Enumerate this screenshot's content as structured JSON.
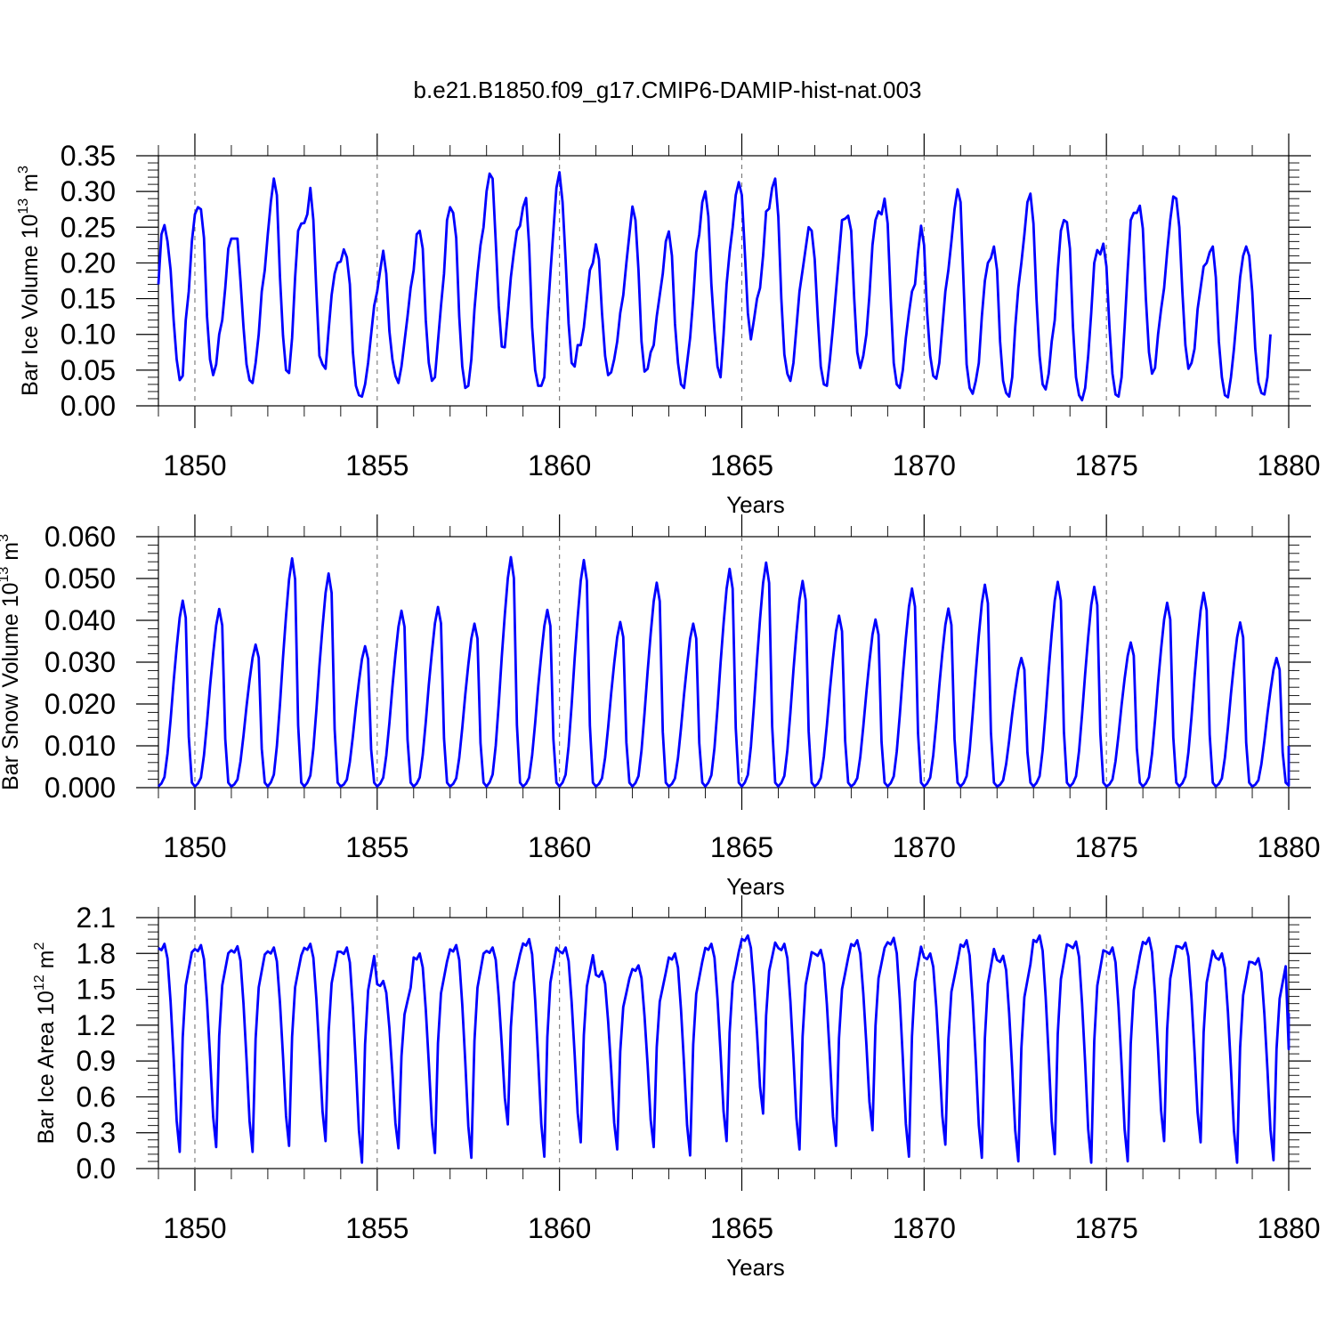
{
  "figure": {
    "title": "b.e21.B1850.f09_g17.CMIP6-DAMIP-hist-nat.003"
  },
  "chart_data": [
    {
      "type": "line",
      "xlabel": "Years",
      "ylabel": "Bar Ice Volume 10",
      "ylabel_exp": "13",
      "ylabel_unit": " m",
      "ylabel_unit_exp": "3",
      "xlim": [
        1849.0,
        1880.0
      ],
      "ylim": [
        0.0,
        0.35
      ],
      "yticks": [
        0.0,
        0.05,
        0.1,
        0.15,
        0.2,
        0.25,
        0.3,
        0.35
      ],
      "ytick_labels": [
        "0.00",
        "0.05",
        "0.10",
        "0.15",
        "0.20",
        "0.25",
        "0.30",
        "0.35"
      ],
      "xticks": [
        1850,
        1855,
        1860,
        1865,
        1870,
        1875,
        1880
      ],
      "xtick_labels": [
        "1850",
        "1855",
        "1860",
        "1865",
        "1870",
        "1875",
        "1880"
      ],
      "reference_lines_x": [
        1850,
        1855,
        1860,
        1865,
        1870,
        1875
      ],
      "color": "#0000ff",
      "start_year": 1849.0,
      "monthly_values": [
        0.17,
        0.24,
        0.253,
        0.23,
        0.19,
        0.12,
        0.065,
        0.036,
        0.042,
        0.12,
        0.16,
        0.23,
        0.268,
        0.278,
        0.275,
        0.235,
        0.125,
        0.065,
        0.043,
        0.058,
        0.1,
        0.12,
        0.165,
        0.22,
        0.234,
        0.234,
        0.234,
        0.175,
        0.11,
        0.058,
        0.036,
        0.032,
        0.06,
        0.1,
        0.16,
        0.19,
        0.24,
        0.285,
        0.318,
        0.295,
        0.18,
        0.098,
        0.05,
        0.046,
        0.095,
        0.18,
        0.245,
        0.255,
        0.256,
        0.268,
        0.305,
        0.26,
        0.16,
        0.07,
        0.058,
        0.052,
        0.105,
        0.155,
        0.185,
        0.2,
        0.202,
        0.219,
        0.208,
        0.17,
        0.075,
        0.028,
        0.015,
        0.013,
        0.03,
        0.06,
        0.1,
        0.14,
        0.16,
        0.19,
        0.217,
        0.185,
        0.105,
        0.065,
        0.042,
        0.032,
        0.055,
        0.09,
        0.125,
        0.165,
        0.19,
        0.24,
        0.245,
        0.22,
        0.12,
        0.06,
        0.035,
        0.04,
        0.09,
        0.14,
        0.185,
        0.26,
        0.278,
        0.27,
        0.235,
        0.125,
        0.055,
        0.025,
        0.028,
        0.065,
        0.135,
        0.185,
        0.225,
        0.25,
        0.3,
        0.325,
        0.318,
        0.23,
        0.14,
        0.083,
        0.082,
        0.13,
        0.18,
        0.215,
        0.245,
        0.252,
        0.278,
        0.291,
        0.225,
        0.11,
        0.05,
        0.028,
        0.028,
        0.04,
        0.12,
        0.185,
        0.245,
        0.305,
        0.327,
        0.285,
        0.205,
        0.115,
        0.06,
        0.055,
        0.085,
        0.085,
        0.11,
        0.15,
        0.19,
        0.2,
        0.226,
        0.205,
        0.13,
        0.07,
        0.043,
        0.047,
        0.065,
        0.09,
        0.13,
        0.155,
        0.2,
        0.24,
        0.279,
        0.26,
        0.19,
        0.09,
        0.048,
        0.052,
        0.075,
        0.085,
        0.125,
        0.155,
        0.185,
        0.23,
        0.244,
        0.21,
        0.115,
        0.06,
        0.03,
        0.025,
        0.06,
        0.095,
        0.15,
        0.215,
        0.24,
        0.285,
        0.3,
        0.265,
        0.17,
        0.105,
        0.055,
        0.04,
        0.1,
        0.17,
        0.215,
        0.25,
        0.295,
        0.313,
        0.295,
        0.215,
        0.13,
        0.093,
        0.12,
        0.15,
        0.165,
        0.21,
        0.272,
        0.276,
        0.305,
        0.318,
        0.265,
        0.15,
        0.072,
        0.045,
        0.035,
        0.06,
        0.11,
        0.16,
        0.19,
        0.22,
        0.25,
        0.245,
        0.205,
        0.125,
        0.055,
        0.03,
        0.028,
        0.065,
        0.11,
        0.16,
        0.21,
        0.26,
        0.262,
        0.266,
        0.245,
        0.15,
        0.075,
        0.053,
        0.07,
        0.1,
        0.155,
        0.225,
        0.26,
        0.272,
        0.268,
        0.29,
        0.255,
        0.15,
        0.06,
        0.03,
        0.025,
        0.05,
        0.095,
        0.13,
        0.16,
        0.17,
        0.215,
        0.252,
        0.225,
        0.13,
        0.07,
        0.042,
        0.038,
        0.06,
        0.11,
        0.16,
        0.19,
        0.23,
        0.275,
        0.303,
        0.285,
        0.17,
        0.058,
        0.025,
        0.017,
        0.035,
        0.06,
        0.125,
        0.175,
        0.2,
        0.207,
        0.223,
        0.19,
        0.09,
        0.035,
        0.018,
        0.013,
        0.04,
        0.11,
        0.165,
        0.2,
        0.24,
        0.285,
        0.297,
        0.255,
        0.15,
        0.07,
        0.03,
        0.023,
        0.045,
        0.09,
        0.12,
        0.19,
        0.245,
        0.26,
        0.257,
        0.22,
        0.11,
        0.04,
        0.015,
        0.008,
        0.025,
        0.07,
        0.13,
        0.2,
        0.218,
        0.212,
        0.227,
        0.195,
        0.11,
        0.045,
        0.016,
        0.013,
        0.04,
        0.11,
        0.19,
        0.26,
        0.27,
        0.27,
        0.28,
        0.248,
        0.15,
        0.075,
        0.045,
        0.053,
        0.1,
        0.135,
        0.165,
        0.215,
        0.26,
        0.293,
        0.29,
        0.25,
        0.16,
        0.085,
        0.052,
        0.06,
        0.08,
        0.135,
        0.165,
        0.195,
        0.2,
        0.215,
        0.223,
        0.18,
        0.09,
        0.04,
        0.015,
        0.012,
        0.04,
        0.08,
        0.13,
        0.18,
        0.21,
        0.223,
        0.21,
        0.16,
        0.08,
        0.033,
        0.018,
        0.016,
        0.04,
        0.1
      ]
    },
    {
      "type": "line",
      "xlabel": "Years",
      "ylabel": "Bar Snow Volume 10",
      "ylabel_exp": "13",
      "ylabel_unit": " m",
      "ylabel_unit_exp": "3",
      "xlim": [
        1849.0,
        1880.0
      ],
      "ylim": [
        0.0,
        0.06
      ],
      "yticks": [
        0.0,
        0.01,
        0.02,
        0.03,
        0.04,
        0.05,
        0.06
      ],
      "ytick_labels": [
        "0.000",
        "0.010",
        "0.020",
        "0.030",
        "0.040",
        "0.050",
        "0.060"
      ],
      "xticks": [
        1850,
        1855,
        1860,
        1865,
        1870,
        1875,
        1880
      ],
      "xtick_labels": [
        "1850",
        "1855",
        "1860",
        "1865",
        "1870",
        "1875",
        "1880"
      ],
      "reference_lines_x": [
        1850,
        1855,
        1860,
        1865,
        1870,
        1875
      ],
      "color": "#0000ff",
      "start_year": 1849.0,
      "peaks": [
        {
          "t": 1849.35,
          "v": 0.0447
        },
        {
          "t": 1850.35,
          "v": 0.0427
        },
        {
          "t": 1851.35,
          "v": 0.0342
        },
        {
          "t": 1852.35,
          "v": 0.0548
        },
        {
          "t": 1853.35,
          "v": 0.0512
        },
        {
          "t": 1854.35,
          "v": 0.0338
        },
        {
          "t": 1855.35,
          "v": 0.0423
        },
        {
          "t": 1856.35,
          "v": 0.0432
        },
        {
          "t": 1857.35,
          "v": 0.0392
        },
        {
          "t": 1858.35,
          "v": 0.0551
        },
        {
          "t": 1859.35,
          "v": 0.0425
        },
        {
          "t": 1860.35,
          "v": 0.0544
        },
        {
          "t": 1861.35,
          "v": 0.0396
        },
        {
          "t": 1862.35,
          "v": 0.049
        },
        {
          "t": 1863.35,
          "v": 0.0392
        },
        {
          "t": 1864.35,
          "v": 0.0523
        },
        {
          "t": 1865.35,
          "v": 0.0538
        },
        {
          "t": 1866.35,
          "v": 0.0494
        },
        {
          "t": 1867.35,
          "v": 0.0411
        },
        {
          "t": 1868.35,
          "v": 0.0402
        },
        {
          "t": 1869.35,
          "v": 0.0476
        },
        {
          "t": 1870.35,
          "v": 0.0428
        },
        {
          "t": 1871.35,
          "v": 0.0485
        },
        {
          "t": 1872.35,
          "v": 0.031
        },
        {
          "t": 1873.35,
          "v": 0.0492
        },
        {
          "t": 1874.35,
          "v": 0.048
        },
        {
          "t": 1875.35,
          "v": 0.0347
        },
        {
          "t": 1876.35,
          "v": 0.0442
        },
        {
          "t": 1877.35,
          "v": 0.0466
        },
        {
          "t": 1878.35,
          "v": 0.0395
        },
        {
          "t": 1879.35,
          "v": 0.031
        }
      ]
    },
    {
      "type": "line",
      "xlabel": "Years",
      "ylabel": "Bar Ice Area 10",
      "ylabel_exp": "12",
      "ylabel_unit": " m",
      "ylabel_unit_exp": "2",
      "xlim": [
        1849.0,
        1880.0
      ],
      "ylim": [
        0.0,
        2.1
      ],
      "yticks": [
        0.0,
        0.3,
        0.6,
        0.9,
        1.2,
        1.5,
        1.8,
        2.1
      ],
      "ytick_labels": [
        "0.0",
        "0.3",
        "0.6",
        "0.9",
        "1.2",
        "1.5",
        "1.8",
        "2.1"
      ],
      "xticks": [
        1850,
        1855,
        1860,
        1865,
        1870,
        1875,
        1880
      ],
      "xtick_labels": [
        "1850",
        "1855",
        "1860",
        "1865",
        "1870",
        "1875",
        "1880"
      ],
      "reference_lines_x": [
        1850,
        1855,
        1860,
        1865,
        1870,
        1875
      ],
      "color": "#0000ff",
      "start_year": 1849.0,
      "annual_max": [
        1.88,
        1.87,
        1.86,
        1.85,
        1.88,
        1.85,
        1.57,
        1.8,
        1.87,
        1.85,
        1.92,
        1.85,
        1.65,
        1.7,
        1.8,
        1.88,
        1.95,
        1.88,
        1.83,
        1.91,
        1.93,
        1.8,
        1.91,
        1.78,
        1.95,
        1.9,
        1.85,
        1.93,
        1.89,
        1.8,
        1.76
      ],
      "annual_min": [
        0.14,
        0.18,
        0.14,
        0.19,
        0.23,
        0.05,
        0.17,
        0.13,
        0.09,
        0.37,
        0.1,
        0.22,
        0.16,
        0.18,
        0.11,
        0.23,
        0.46,
        0.16,
        0.19,
        0.32,
        0.1,
        0.2,
        0.09,
        0.06,
        0.12,
        0.05,
        0.06,
        0.23,
        0.22,
        0.05,
        0.07
      ]
    }
  ]
}
